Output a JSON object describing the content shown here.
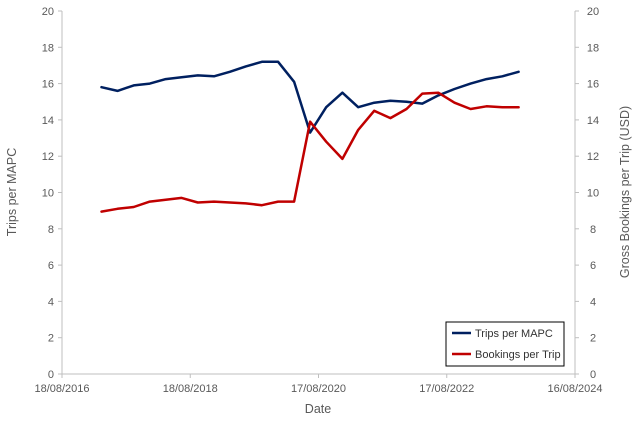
{
  "chart_data": {
    "type": "line",
    "xlabel": "Date",
    "ylabel_left": "Trips per MAPC",
    "ylabel_right": "Gross Bookings per Trip (USD)",
    "x_ticks": [
      "18/08/2016",
      "18/08/2018",
      "17/08/2020",
      "17/08/2022",
      "16/08/2024"
    ],
    "x_range": [
      "18/08/2016",
      "16/08/2024"
    ],
    "ylim_left": [
      0,
      20
    ],
    "ylim_right": [
      0,
      20
    ],
    "y_ticks": [
      0,
      2,
      4,
      6,
      8,
      10,
      12,
      14,
      16,
      18,
      20
    ],
    "grid": false,
    "legend_position": "bottom-right",
    "x": [
      "31/03/2017",
      "30/06/2017",
      "30/09/2017",
      "31/12/2017",
      "31/03/2018",
      "30/06/2018",
      "30/09/2018",
      "31/12/2018",
      "31/03/2019",
      "30/06/2019",
      "30/09/2019",
      "31/12/2019",
      "31/03/2020",
      "30/06/2020",
      "30/09/2020",
      "31/12/2020",
      "31/03/2021",
      "30/06/2021",
      "30/09/2021",
      "31/12/2021",
      "31/03/2022",
      "30/06/2022",
      "30/09/2022",
      "31/12/2022",
      "31/03/2023",
      "30/06/2023",
      "30/09/2023"
    ],
    "series": [
      {
        "name": "Trips per MAPC",
        "axis": "left",
        "color": "#002060",
        "values": [
          15.8,
          15.6,
          15.9,
          16.0,
          16.25,
          16.35,
          16.45,
          16.4,
          16.65,
          16.95,
          17.2,
          17.2,
          16.1,
          13.3,
          14.7,
          15.5,
          14.7,
          14.95,
          15.05,
          15.0,
          14.9,
          15.35,
          15.7,
          16.0,
          16.25,
          16.4,
          16.65
        ]
      },
      {
        "name": "Bookings per Trip",
        "axis": "right",
        "color": "#C00000",
        "values": [
          8.95,
          9.1,
          9.2,
          9.5,
          9.6,
          9.7,
          9.45,
          9.5,
          9.45,
          9.4,
          9.3,
          9.5,
          9.5,
          13.9,
          12.8,
          11.85,
          13.45,
          14.5,
          14.1,
          14.6,
          15.45,
          15.5,
          14.95,
          14.6,
          14.75,
          14.7,
          14.7
        ]
      }
    ]
  }
}
